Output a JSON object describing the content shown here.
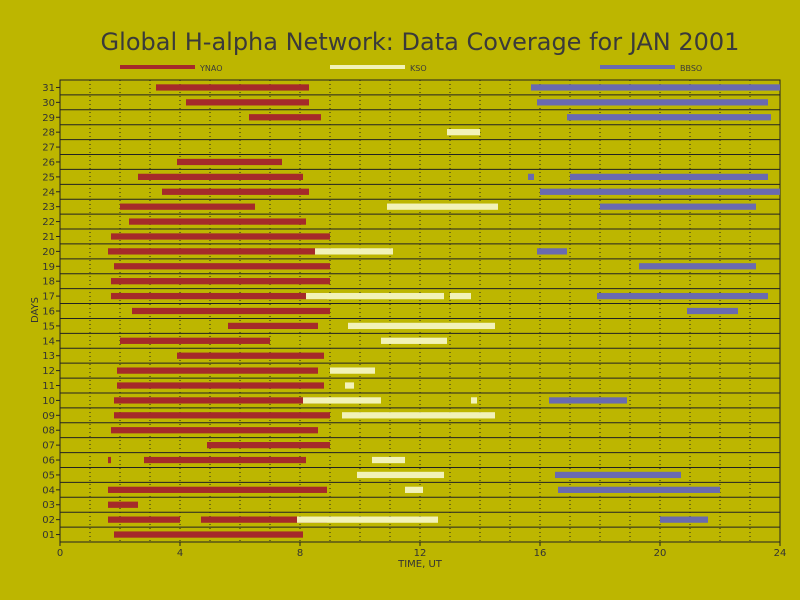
{
  "chart_data": {
    "type": "bar",
    "title": "Global H-alpha Network: Data Coverage for JAN 2001",
    "xlabel": "TIME, UT",
    "ylabel": "DAYS",
    "xlim": [
      0,
      24
    ],
    "xticks": [
      "0",
      "4",
      "8",
      "12",
      "16",
      "20",
      "24"
    ],
    "days": [
      "01",
      "02",
      "03",
      "04",
      "05",
      "06",
      "07",
      "08",
      "09",
      "10",
      "11",
      "12",
      "13",
      "14",
      "15",
      "16",
      "17",
      "18",
      "19",
      "20",
      "21",
      "22",
      "23",
      "24",
      "25",
      "26",
      "27",
      "28",
      "29",
      "30",
      "31"
    ],
    "grid": "dotted vertical lines every 1 hour, solid horizontal lines between days",
    "legend_placement": "top",
    "series": [
      {
        "name": "YNAO",
        "color": "#a52a2a",
        "intervals": [
          [
            1,
            1.8,
            8.1
          ],
          [
            2,
            1.6,
            4.0
          ],
          [
            2,
            4.7,
            8.9
          ],
          [
            3,
            1.6,
            2.6
          ],
          [
            4,
            1.6,
            8.9
          ],
          [
            6,
            1.6,
            1.7
          ],
          [
            6,
            2.8,
            8.2
          ],
          [
            7,
            4.9,
            9.0
          ],
          [
            8,
            1.7,
            8.6
          ],
          [
            9,
            1.8,
            9.0
          ],
          [
            10,
            1.8,
            8.9
          ],
          [
            11,
            1.9,
            8.8
          ],
          [
            12,
            1.9,
            8.6
          ],
          [
            13,
            3.9,
            8.8
          ],
          [
            14,
            2.0,
            7.0
          ],
          [
            15,
            5.6,
            8.6
          ],
          [
            16,
            2.4,
            9.0
          ],
          [
            17,
            1.7,
            8.9
          ],
          [
            18,
            1.7,
            9.0
          ],
          [
            19,
            1.8,
            9.0
          ],
          [
            20,
            1.6,
            9.0
          ],
          [
            21,
            1.7,
            9.0
          ],
          [
            22,
            2.3,
            8.2
          ],
          [
            23,
            2.0,
            6.5
          ],
          [
            24,
            3.4,
            8.3
          ],
          [
            25,
            2.6,
            8.1
          ],
          [
            26,
            3.9,
            7.4
          ],
          [
            29,
            6.3,
            8.7
          ],
          [
            30,
            4.2,
            8.3
          ],
          [
            31,
            3.2,
            8.3
          ]
        ]
      },
      {
        "name": "KSO",
        "color": "#f2f2b8",
        "intervals": [
          [
            2,
            7.9,
            12.6
          ],
          [
            4,
            11.5,
            12.1
          ],
          [
            5,
            9.9,
            12.8
          ],
          [
            6,
            10.4,
            11.5
          ],
          [
            9,
            9.4,
            14.5
          ],
          [
            10,
            8.1,
            10.7
          ],
          [
            10,
            13.7,
            13.9
          ],
          [
            11,
            9.5,
            9.8
          ],
          [
            12,
            9.0,
            10.5
          ],
          [
            14,
            10.7,
            12.9
          ],
          [
            15,
            9.6,
            14.5
          ],
          [
            17,
            8.2,
            12.8
          ],
          [
            17,
            13.0,
            13.7
          ],
          [
            20,
            8.5,
            11.1
          ],
          [
            23,
            10.9,
            14.6
          ],
          [
            28,
            12.9,
            14.0
          ]
        ]
      },
      {
        "name": "BBSO",
        "color": "#6a6ab0",
        "intervals": [
          [
            2,
            20.0,
            21.6
          ],
          [
            4,
            16.6,
            22.0
          ],
          [
            5,
            16.5,
            20.7
          ],
          [
            10,
            16.3,
            18.9
          ],
          [
            16,
            20.9,
            22.6
          ],
          [
            17,
            17.9,
            23.6
          ],
          [
            19,
            19.3,
            23.2
          ],
          [
            20,
            15.9,
            16.9
          ],
          [
            23,
            18.0,
            23.2
          ],
          [
            24,
            16.0,
            24.0
          ],
          [
            25,
            15.6,
            15.8
          ],
          [
            25,
            17.0,
            23.6
          ],
          [
            29,
            16.9,
            23.7
          ],
          [
            30,
            15.9,
            23.6
          ],
          [
            31,
            15.7,
            24.0
          ]
        ]
      }
    ]
  }
}
